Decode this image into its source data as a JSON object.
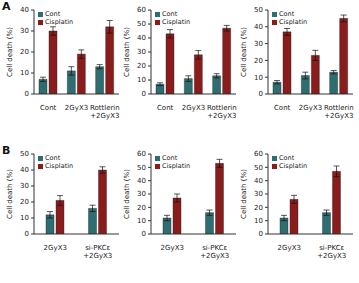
{
  "chart_data": [
    {
      "type": "bar",
      "panel": "A",
      "categories": [
        "Cont",
        "2GyX3",
        "Rottlerin\n+2GyX3"
      ],
      "ylabel": "Cell death (%)",
      "ylim": [
        0,
        40
      ],
      "yticks": [
        0,
        10,
        20,
        30,
        40
      ],
      "legend": "upper left",
      "series": [
        {
          "name": "Cont",
          "color": "#2f6e70",
          "values": [
            7,
            11,
            13
          ],
          "errors": [
            1,
            2,
            1
          ]
        },
        {
          "name": "Cisplatin",
          "color": "#8b1c1c",
          "values": [
            30,
            19,
            32
          ],
          "errors": [
            2,
            2,
            3
          ]
        }
      ]
    },
    {
      "type": "bar",
      "panel": "A",
      "categories": [
        "Cont",
        "2GyX3",
        "Rottlerin\n+2GyX3"
      ],
      "ylabel": "Cell death (%)",
      "ylim": [
        0,
        60
      ],
      "yticks": [
        0,
        10,
        20,
        30,
        40,
        50,
        60
      ],
      "legend": "upper left",
      "series": [
        {
          "name": "Cont",
          "color": "#2f6e70",
          "values": [
            7,
            11,
            13
          ],
          "errors": [
            1,
            2,
            1.5
          ]
        },
        {
          "name": "Cisplatin",
          "color": "#8b1c1c",
          "values": [
            43,
            28,
            47
          ],
          "errors": [
            3,
            3,
            2
          ]
        }
      ]
    },
    {
      "type": "bar",
      "panel": "A",
      "categories": [
        "Cont",
        "2GyX3",
        "Rottlerin\n+2GyX3"
      ],
      "ylabel": "Cell death (%)",
      "ylim": [
        0,
        50
      ],
      "yticks": [
        0,
        10,
        20,
        30,
        40,
        50
      ],
      "legend": "upper left",
      "series": [
        {
          "name": "Cont",
          "color": "#2f6e70",
          "values": [
            7,
            11,
            13
          ],
          "errors": [
            1,
            2,
            1
          ]
        },
        {
          "name": "Cisplatin",
          "color": "#8b1c1c",
          "values": [
            37,
            23,
            45
          ],
          "errors": [
            2,
            3,
            2
          ]
        }
      ]
    },
    {
      "type": "bar",
      "panel": "B",
      "categories": [
        "2GyX3",
        "si-PKCε\n+2GyX3"
      ],
      "ylabel": "Cell death (%)",
      "ylim": [
        0,
        50
      ],
      "yticks": [
        0,
        10,
        20,
        30,
        40,
        50
      ],
      "legend": "upper left",
      "series": [
        {
          "name": "Cont",
          "color": "#2f6e70",
          "values": [
            12,
            16
          ],
          "errors": [
            2,
            2
          ]
        },
        {
          "name": "Cisplatin",
          "color": "#8b1c1c",
          "values": [
            21,
            40
          ],
          "errors": [
            3,
            2
          ]
        }
      ]
    },
    {
      "type": "bar",
      "panel": "B",
      "categories": [
        "2GyX3",
        "si-PKCε\n+2GyX3"
      ],
      "ylabel": "Cell death (%)",
      "ylim": [
        0,
        60
      ],
      "yticks": [
        0,
        10,
        20,
        30,
        40,
        50,
        60
      ],
      "legend": "upper left",
      "series": [
        {
          "name": "Cont",
          "color": "#2f6e70",
          "values": [
            12,
            16
          ],
          "errors": [
            2,
            2
          ]
        },
        {
          "name": "Cisplatin",
          "color": "#8b1c1c",
          "values": [
            27,
            53
          ],
          "errors": [
            3,
            3
          ]
        }
      ]
    },
    {
      "type": "bar",
      "panel": "B",
      "categories": [
        "2GyX3",
        "si-PKCε\n+2GyX3"
      ],
      "ylabel": "Cell death (%)",
      "ylim": [
        0,
        60
      ],
      "yticks": [
        0,
        10,
        20,
        30,
        40,
        50,
        60
      ],
      "legend": "upper left",
      "series": [
        {
          "name": "Cont",
          "color": "#2f6e70",
          "values": [
            12,
            16
          ],
          "errors": [
            2,
            2
          ]
        },
        {
          "name": "Cisplatin",
          "color": "#8b1c1c",
          "values": [
            26,
            47
          ],
          "errors": [
            3,
            4
          ]
        }
      ]
    }
  ]
}
